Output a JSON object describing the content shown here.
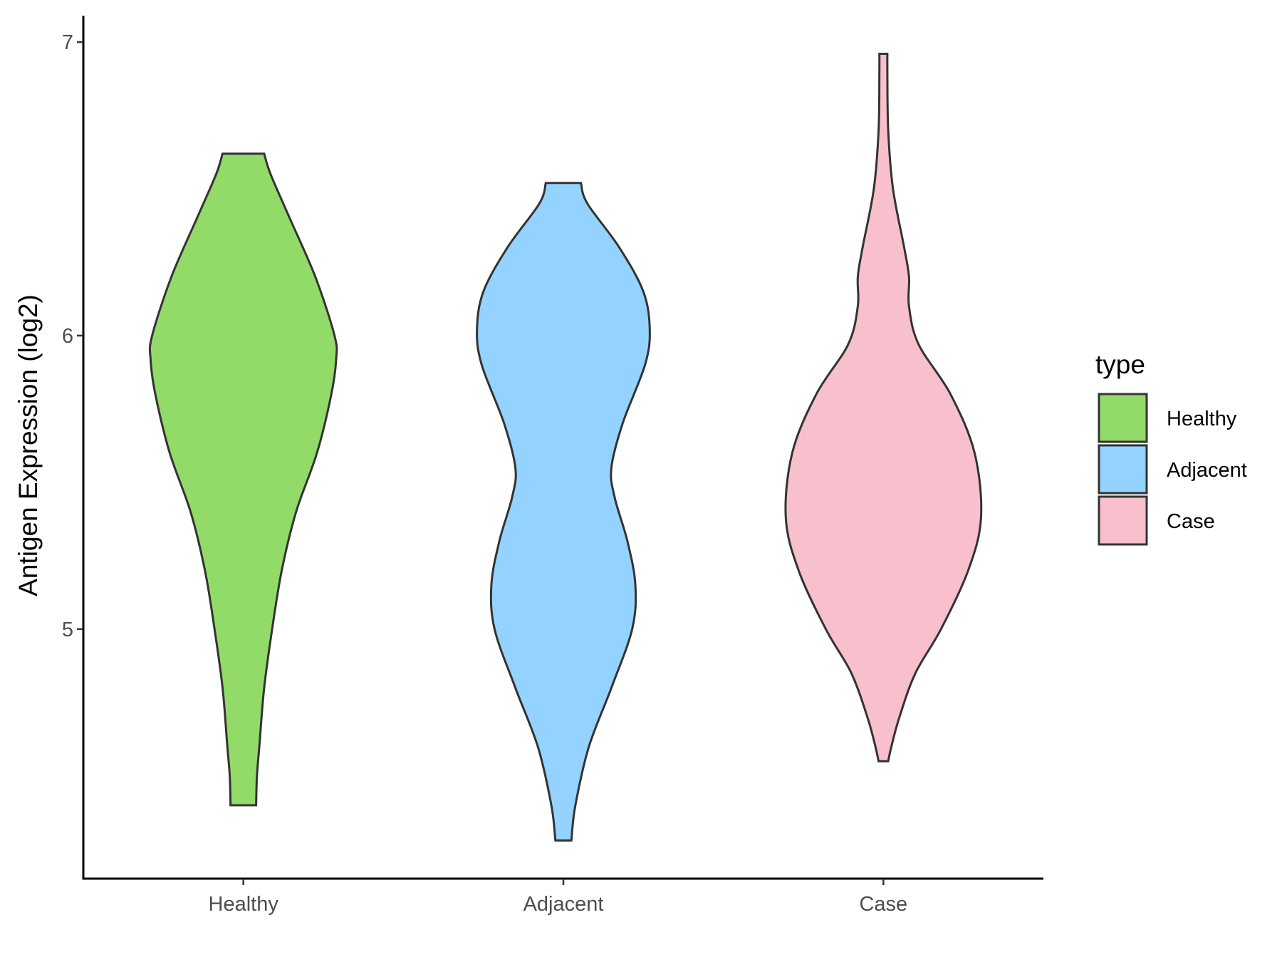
{
  "chart_data": {
    "type": "violin",
    "ylabel": "Antigen Expression (log2)",
    "xlabel": "",
    "categories": [
      "Healthy",
      "Adjacent",
      "Case"
    ],
    "y_ticks": [
      5,
      6,
      7
    ],
    "ylim": [
      4.15,
      7.09
    ],
    "legend": {
      "title": "type",
      "position": "right",
      "entries": [
        "Healthy",
        "Adjacent",
        "Case"
      ]
    },
    "colors": {
      "Healthy": "#93db69",
      "Adjacent": "#94d3ff",
      "Case": "#f8c0cc"
    },
    "grid": false,
    "series": [
      {
        "category": "Healthy",
        "min": 4.4,
        "max": 6.62,
        "profile": [
          [
            4.4,
            0.08
          ],
          [
            4.5,
            0.085
          ],
          [
            4.6,
            0.1
          ],
          [
            4.8,
            0.13
          ],
          [
            5.0,
            0.18
          ],
          [
            5.2,
            0.24
          ],
          [
            5.4,
            0.33
          ],
          [
            5.6,
            0.46
          ],
          [
            5.8,
            0.55
          ],
          [
            5.92,
            0.58
          ],
          [
            6.0,
            0.57
          ],
          [
            6.2,
            0.45
          ],
          [
            6.4,
            0.29
          ],
          [
            6.55,
            0.17
          ],
          [
            6.62,
            0.13
          ]
        ]
      },
      {
        "category": "Adjacent",
        "min": 4.28,
        "max": 6.52,
        "profile": [
          [
            4.28,
            0.05
          ],
          [
            4.4,
            0.075
          ],
          [
            4.6,
            0.16
          ],
          [
            4.8,
            0.3
          ],
          [
            5.0,
            0.43
          ],
          [
            5.15,
            0.45
          ],
          [
            5.3,
            0.4
          ],
          [
            5.45,
            0.32
          ],
          [
            5.55,
            0.3
          ],
          [
            5.7,
            0.37
          ],
          [
            5.9,
            0.51
          ],
          [
            6.02,
            0.54
          ],
          [
            6.15,
            0.5
          ],
          [
            6.3,
            0.35
          ],
          [
            6.45,
            0.15
          ],
          [
            6.52,
            0.11
          ]
        ]
      },
      {
        "category": "Case",
        "min": 4.55,
        "max": 6.96,
        "profile": [
          [
            4.55,
            0.03
          ],
          [
            4.6,
            0.05
          ],
          [
            4.7,
            0.1
          ],
          [
            4.85,
            0.2
          ],
          [
            5.0,
            0.36
          ],
          [
            5.2,
            0.53
          ],
          [
            5.38,
            0.61
          ],
          [
            5.6,
            0.57
          ],
          [
            5.8,
            0.42
          ],
          [
            5.97,
            0.22
          ],
          [
            6.1,
            0.16
          ],
          [
            6.2,
            0.16
          ],
          [
            6.3,
            0.13
          ],
          [
            6.5,
            0.06
          ],
          [
            6.7,
            0.03
          ],
          [
            6.9,
            0.025
          ],
          [
            6.96,
            0.025
          ]
        ]
      }
    ]
  }
}
